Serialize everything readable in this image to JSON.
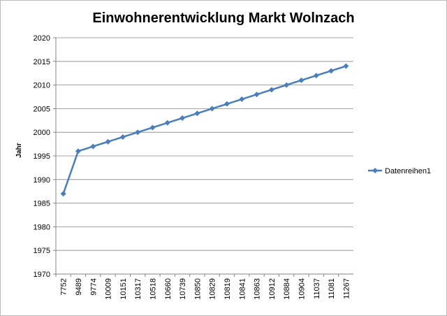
{
  "chart_data": {
    "type": "line",
    "title": "Einwohnerentwicklung Markt Wolnzach",
    "y_label": "Jahr",
    "categories": [
      "7752",
      "9489",
      "9774",
      "10009",
      "10151",
      "10317",
      "10518",
      "10660",
      "10739",
      "10850",
      "10829",
      "10819",
      "10841",
      "10863",
      "10912",
      "10884",
      "10904",
      "11037",
      "11081",
      "11267"
    ],
    "series": [
      {
        "name": "Datenreihen1",
        "color": "#4a7ebb",
        "values": [
          1987,
          1996,
          1997,
          1998,
          1999,
          2000,
          2001,
          2002,
          2003,
          2004,
          2005,
          2006,
          2007,
          2008,
          2009,
          2010,
          2011,
          2012,
          2013,
          2014
        ]
      }
    ],
    "ylim": [
      1970,
      2020
    ],
    "yticks": [
      1970,
      1975,
      1980,
      1985,
      1990,
      1995,
      2000,
      2005,
      2010,
      2015,
      2020
    ],
    "grid": true,
    "legend": "right"
  }
}
